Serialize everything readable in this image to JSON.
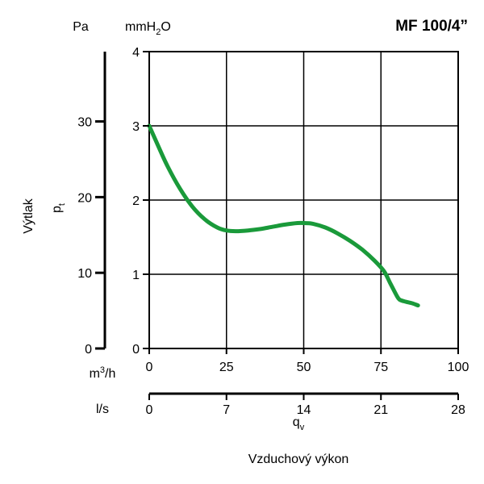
{
  "chart_data": {
    "type": "line",
    "title": "MF 100/4”",
    "ylabel": "Výtlak",
    "ylabel_symbol": "p",
    "ylabel_symbol_sub": "t",
    "xlabel": "Vzduchový výkon",
    "xlabel_symbol": "q",
    "xlabel_symbol_sub": "v",
    "y_unit_left": "Pa",
    "y_unit_right_pre": "mmH",
    "y_unit_right_sub": "2",
    "y_unit_right_post": "O",
    "x_unit_primary_pre": "m",
    "x_unit_primary_sup": "3",
    "x_unit_primary_post": "/h",
    "x_unit_secondary": "l/s",
    "xlim": [
      0,
      100
    ],
    "ylim": [
      0,
      4
    ],
    "pa_ticks": [
      "0",
      "10",
      "20",
      "30"
    ],
    "pa_tick_values": [
      0,
      10,
      20,
      30
    ],
    "y_ticks": [
      "0",
      "1",
      "2",
      "3",
      "4"
    ],
    "y_tick_values": [
      0,
      1,
      2,
      3,
      4
    ],
    "x_ticks": [
      "0",
      "25",
      "50",
      "75",
      "100"
    ],
    "x_tick_values": [
      0,
      25,
      50,
      75,
      100
    ],
    "ls_ticks": [
      "0",
      "7",
      "14",
      "21",
      "28"
    ],
    "ls_tick_values": [
      0,
      7,
      14,
      21,
      28
    ],
    "grid": true,
    "series_color": "#1a9a3a",
    "series": [
      {
        "x": [
          0,
          3,
          6,
          10,
          14,
          18,
          22,
          25,
          28,
          32,
          36,
          40,
          44,
          48,
          50,
          53,
          57,
          61,
          65,
          69,
          73,
          76,
          78,
          80,
          81,
          83,
          85,
          87
        ],
        "y": [
          3.0,
          2.72,
          2.45,
          2.15,
          1.91,
          1.74,
          1.63,
          1.59,
          1.58,
          1.59,
          1.61,
          1.64,
          1.67,
          1.69,
          1.69,
          1.68,
          1.63,
          1.55,
          1.45,
          1.33,
          1.18,
          1.04,
          0.88,
          0.72,
          0.66,
          0.63,
          0.61,
          0.58
        ]
      }
    ]
  }
}
